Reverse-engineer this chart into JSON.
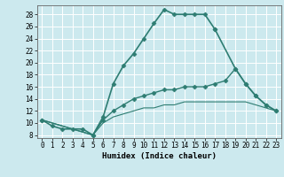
{
  "title": "",
  "xlabel": "Humidex (Indice chaleur)",
  "xlim": [
    -0.5,
    23.5
  ],
  "ylim": [
    7.5,
    29.5
  ],
  "xticks": [
    0,
    1,
    2,
    3,
    4,
    5,
    6,
    7,
    8,
    9,
    10,
    11,
    12,
    13,
    14,
    15,
    16,
    17,
    18,
    19,
    20,
    21,
    22,
    23
  ],
  "yticks": [
    8,
    10,
    12,
    14,
    16,
    18,
    20,
    22,
    24,
    26,
    28
  ],
  "background_color": "#cce9ee",
  "grid_color": "#ffffff",
  "line_color": "#2e7d72",
  "lines": [
    {
      "x": [
        0,
        1,
        2,
        3,
        4,
        5,
        6,
        7,
        8,
        9,
        10,
        11,
        12,
        13,
        14,
        15,
        16,
        17
      ],
      "y": [
        10.5,
        9.5,
        9.0,
        9.0,
        9.0,
        8.0,
        11.0,
        16.5,
        19.5,
        21.5,
        24.0,
        26.5,
        28.8,
        28.0,
        28.0,
        28.0,
        28.0,
        25.5
      ],
      "marker": "D",
      "markersize": 2.5,
      "linewidth": 1.2
    },
    {
      "x": [
        17,
        19,
        20,
        21,
        22,
        23
      ],
      "y": [
        25.5,
        19.0,
        16.5,
        14.5,
        13.0,
        12.0
      ],
      "marker": "D",
      "markersize": 2.5,
      "linewidth": 1.2
    },
    {
      "x": [
        0,
        5,
        6,
        7,
        8,
        9,
        10,
        11,
        12,
        13,
        14,
        15,
        16,
        17,
        18,
        19,
        20,
        21,
        22,
        23
      ],
      "y": [
        10.5,
        8.0,
        10.5,
        12.0,
        13.0,
        14.0,
        14.5,
        15.0,
        15.5,
        15.5,
        16.0,
        16.0,
        16.0,
        16.5,
        17.0,
        19.0,
        16.5,
        14.5,
        13.0,
        12.0
      ],
      "marker": "D",
      "markersize": 2.5,
      "linewidth": 1.0
    },
    {
      "x": [
        0,
        5,
        6,
        7,
        8,
        9,
        10,
        11,
        12,
        13,
        14,
        15,
        16,
        17,
        18,
        19,
        20,
        21,
        22,
        23
      ],
      "y": [
        10.5,
        8.0,
        10.0,
        11.0,
        11.5,
        12.0,
        12.5,
        12.5,
        13.0,
        13.0,
        13.5,
        13.5,
        13.5,
        13.5,
        13.5,
        13.5,
        13.5,
        13.0,
        12.5,
        12.0
      ],
      "marker": null,
      "markersize": 0,
      "linewidth": 0.8
    }
  ]
}
